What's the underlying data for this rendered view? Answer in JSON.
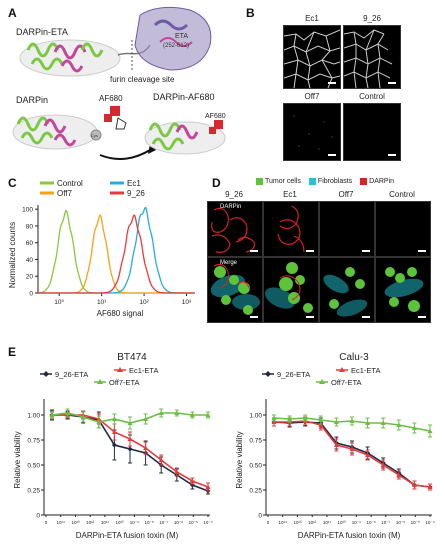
{
  "panels": {
    "A": {
      "letter": "A",
      "darpin_eta_label": "DARPin-ETA",
      "eta_label": "ETA",
      "eta_residues": "(252-612)",
      "furin_label": "furin cleavage site",
      "darpin_label": "DARPin",
      "af680_label": "AF680",
      "darpin_af680_label": "DARPin-AF680",
      "af680_small": "AF680",
      "cys_label": "Cys",
      "colors": {
        "helix_green": "#7ac943",
        "helix_pink": "#c2479a",
        "eta_purple": "#6f5aa6",
        "dye_red": "#d7282f"
      }
    },
    "B": {
      "letter": "B",
      "tiles": [
        "Ec1",
        "9_26",
        "Off7",
        "Control"
      ]
    },
    "C": {
      "letter": "C",
      "chart_data": {
        "type": "line",
        "xlabel": "AF680 signal",
        "ylabel": "Normalized counts",
        "x_ticks": [
          "10⁰",
          "10¹",
          "10²",
          "10³"
        ],
        "y_ticks": [
          "0",
          "20",
          "40",
          "60",
          "80",
          "100"
        ],
        "ylim": [
          0,
          105
        ],
        "x_log_range": [
          -0.5,
          3.2
        ],
        "series": [
          {
            "name": "Control",
            "color": "#8dc63f",
            "peak_log10": 0.15,
            "width": 0.18,
            "height": 95
          },
          {
            "name": "Off7",
            "color": "#f7a11a",
            "peak_log10": 0.95,
            "width": 0.17,
            "height": 90
          },
          {
            "name": "Ec1",
            "color": "#29abe2",
            "peak_log10": 2.0,
            "width": 0.2,
            "height": 100
          },
          {
            "name": "9_26",
            "color": "#e83a3a",
            "peak_log10": 1.75,
            "width": 0.2,
            "height": 90
          }
        ]
      }
    },
    "D": {
      "letter": "D",
      "legend": [
        {
          "label": "Tumor cells",
          "color": "#5cc33b"
        },
        {
          "label": "Fibroblasts",
          "color": "#21c5d8"
        },
        {
          "label": "DARPin",
          "color": "#e02020"
        }
      ],
      "columns": [
        "9_26",
        "Ec1",
        "Off7",
        "Control"
      ],
      "row_labels": [
        "DARPin",
        "Merge"
      ]
    },
    "E": {
      "letter": "E",
      "x_ticks": [
        "0",
        "10¹⁴",
        "10¹³",
        "10¹²",
        "10¹¹",
        "10¹⁰",
        "10⁻⁹",
        "10⁻⁸",
        "10⁻⁷",
        "10⁻⁶",
        "10⁻⁵",
        "10⁻⁴"
      ],
      "y_ticks": [
        "0",
        "0.25",
        "0.50",
        "0.75",
        "1.00"
      ],
      "charts": [
        {
          "title": "BT474",
          "xlabel": "DARPin-ETA fusion toxin (M)",
          "ylabel": "Relative viability",
          "type": "line",
          "ylim": [
            0,
            1.1
          ],
          "series": [
            {
              "name": "9_26-ETA",
              "color": "#1f2a44",
              "marker": "diamond",
              "y": [
                1.0,
                1.0,
                0.98,
                0.95,
                0.7,
                0.66,
                0.62,
                0.5,
                0.4,
                0.3,
                0.24
              ],
              "err": [
                0.05,
                0.04,
                0.06,
                0.08,
                0.15,
                0.14,
                0.12,
                0.08,
                0.06,
                0.04,
                0.03
              ]
            },
            {
              "name": "Ec1-ETA",
              "color": "#e83a3a",
              "marker": "triangle",
              "y": [
                1.0,
                1.0,
                1.0,
                0.96,
                0.83,
                0.76,
                0.67,
                0.55,
                0.43,
                0.34,
                0.28
              ],
              "err": [
                0.03,
                0.03,
                0.04,
                0.05,
                0.08,
                0.07,
                0.06,
                0.05,
                0.04,
                0.03,
                0.04
              ]
            },
            {
              "name": "Off7-ETA",
              "color": "#6abd45",
              "marker": "triangle",
              "y": [
                1.0,
                1.02,
                0.98,
                0.93,
                0.96,
                0.92,
                0.96,
                1.02,
                1.02,
                1.0,
                1.0
              ],
              "err": [
                0.04,
                0.04,
                0.05,
                0.06,
                0.05,
                0.06,
                0.05,
                0.04,
                0.03,
                0.03,
                0.03
              ]
            }
          ]
        },
        {
          "title": "Calu-3",
          "xlabel": "DARPin-ETA fusion toxin (M)",
          "ylabel": "Relative viability",
          "type": "line",
          "ylim": [
            0,
            1.1
          ],
          "series": [
            {
              "name": "9_26-ETA",
              "color": "#1f2a44",
              "marker": "diamond",
              "y": [
                0.93,
                0.92,
                0.93,
                0.92,
                0.72,
                0.68,
                0.62,
                0.52,
                0.42,
                0.3,
                0.28
              ],
              "err": [
                0.04,
                0.04,
                0.04,
                0.05,
                0.06,
                0.06,
                0.06,
                0.05,
                0.04,
                0.04,
                0.03
              ]
            },
            {
              "name": "Ec1-ETA",
              "color": "#e83a3a",
              "marker": "triangle",
              "y": [
                0.93,
                0.93,
                0.94,
                0.9,
                0.7,
                0.66,
                0.6,
                0.5,
                0.4,
                0.3,
                0.28
              ],
              "err": [
                0.04,
                0.04,
                0.04,
                0.05,
                0.06,
                0.06,
                0.05,
                0.05,
                0.04,
                0.04,
                0.03
              ]
            },
            {
              "name": "Off7-ETA",
              "color": "#6abd45",
              "marker": "triangle",
              "y": [
                0.97,
                0.96,
                0.97,
                0.95,
                0.93,
                0.94,
                0.92,
                0.92,
                0.9,
                0.87,
                0.84
              ],
              "err": [
                0.03,
                0.03,
                0.03,
                0.04,
                0.04,
                0.04,
                0.05,
                0.05,
                0.05,
                0.05,
                0.06
              ]
            }
          ]
        }
      ]
    }
  }
}
